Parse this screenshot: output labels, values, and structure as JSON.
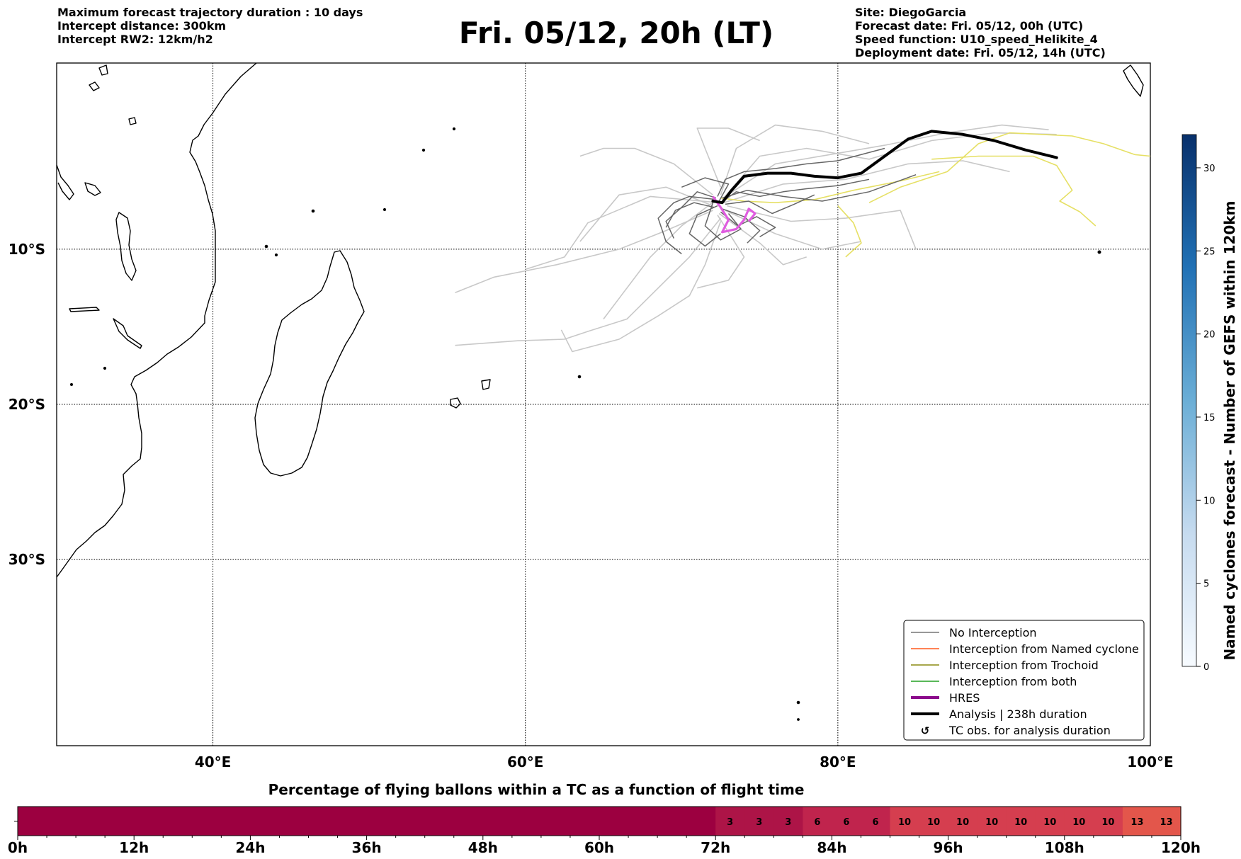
{
  "header": {
    "left_lines": [
      "Maximum forecast trajectory duration : 10 days",
      "Intercept distance: 300km",
      "Intercept RW2: 12km/h2"
    ],
    "title": "Fri. 05/12, 20h (LT)",
    "right_lines": [
      "Site: DiegoGarcia",
      "Forecast date: Fri. 05/12, 00h (UTC)",
      "Speed function: U10_speed_Helikite_4",
      "Deployment date: Fri. 05/12, 14h (UTC)"
    ]
  },
  "chart_data": [
    {
      "type": "map-trajectories",
      "lon_range": [
        30,
        100
      ],
      "lat_range": [
        -42,
        2
      ],
      "x_ticks": [
        "40°E",
        "60°E",
        "80°E",
        "100°E"
      ],
      "x_tick_values": [
        40,
        60,
        80,
        100
      ],
      "y_ticks": [
        "10°S",
        "20°S",
        "30°S"
      ],
      "y_tick_values": [
        -10,
        -20,
        -30
      ],
      "grid": true,
      "legend_position": "lower-right",
      "legend": [
        {
          "label": "No Interception",
          "color": "#777777",
          "style": "thin"
        },
        {
          "label": "Interception from Named cyclone",
          "color": "#ff5a1f",
          "style": "thin"
        },
        {
          "label": "Interception from Trochoid",
          "color": "#8a8a10",
          "style": "thin"
        },
        {
          "label": "Interception from both",
          "color": "#22a022",
          "style": "thin"
        },
        {
          "label": "HRES",
          "color": "#8b0a8b",
          "style": "thick"
        },
        {
          "label": "Analysis | 238h duration",
          "color": "#000000",
          "style": "thick"
        },
        {
          "label": "TC obs. for analysis duration",
          "color": "#000000",
          "style": "marker",
          "symbol": "↺"
        }
      ],
      "analysis_track": [
        [
          72.0,
          -6.9
        ],
        [
          72.6,
          -7.0
        ],
        [
          73.2,
          -6.2
        ],
        [
          74.0,
          -5.3
        ],
        [
          75.5,
          -5.1
        ],
        [
          77.0,
          -5.1
        ],
        [
          78.5,
          -5.3
        ],
        [
          80.0,
          -5.4
        ],
        [
          81.5,
          -5.1
        ],
        [
          83.0,
          -4.0
        ],
        [
          84.5,
          -2.9
        ],
        [
          86.0,
          -2.4
        ],
        [
          88.0,
          -2.6
        ],
        [
          90.0,
          -3.0
        ],
        [
          92.0,
          -3.6
        ],
        [
          94.0,
          -4.1
        ]
      ],
      "hres_track": [
        [
          72.0,
          -6.6
        ],
        [
          72.5,
          -7.3
        ],
        [
          73.0,
          -8.1
        ],
        [
          72.6,
          -8.9
        ],
        [
          73.5,
          -8.7
        ],
        [
          74.0,
          -8.1
        ],
        [
          74.3,
          -7.4
        ],
        [
          74.7,
          -7.7
        ],
        [
          74.3,
          -8.2
        ]
      ],
      "yellow_tracks": [
        [
          [
            72.5,
            -6.7
          ],
          [
            74.0,
            -6.9
          ],
          [
            76.0,
            -7.0
          ],
          [
            78.5,
            -6.8
          ],
          [
            81.0,
            -6.2
          ],
          [
            84.0,
            -5.6
          ],
          [
            86.5,
            -5.0
          ]
        ],
        [
          [
            80.0,
            -7.2
          ],
          [
            81.0,
            -8.3
          ],
          [
            81.5,
            -9.6
          ],
          [
            80.5,
            -10.5
          ]
        ],
        [
          [
            82.0,
            -7.0
          ],
          [
            84.0,
            -6.0
          ],
          [
            87.0,
            -5.0
          ],
          [
            89.0,
            -3.2
          ],
          [
            91.0,
            -2.5
          ],
          [
            93.0,
            -2.6
          ],
          [
            95.0,
            -2.7
          ],
          [
            97.0,
            -3.2
          ],
          [
            99.0,
            -3.9
          ],
          [
            100.0,
            -4.0
          ]
        ],
        [
          [
            86.0,
            -4.2
          ],
          [
            89.0,
            -4.0
          ],
          [
            92.5,
            -4.0
          ],
          [
            94.0,
            -4.6
          ],
          [
            95.0,
            -6.2
          ],
          [
            94.2,
            -6.9
          ],
          [
            95.5,
            -7.6
          ],
          [
            96.5,
            -8.5
          ]
        ]
      ],
      "dark_gray_tracks": [
        [
          [
            72.2,
            -6.7
          ],
          [
            71.0,
            -6.3
          ],
          [
            70.0,
            -7.3
          ],
          [
            69.0,
            -8.2
          ],
          [
            69.5,
            -9.3
          ]
        ],
        [
          [
            72.5,
            -7.0
          ],
          [
            73.5,
            -6.3
          ],
          [
            75.0,
            -6.6
          ],
          [
            76.5,
            -6.3
          ],
          [
            78.0,
            -6.1
          ],
          [
            80.0,
            -5.9
          ],
          [
            82.0,
            -5.5
          ]
        ],
        [
          [
            72.3,
            -7.2
          ],
          [
            71.0,
            -7.8
          ],
          [
            70.5,
            -9.0
          ],
          [
            71.5,
            -9.8
          ],
          [
            72.5,
            -9.0
          ]
        ],
        [
          [
            72.6,
            -7.4
          ],
          [
            74.0,
            -7.9
          ],
          [
            75.0,
            -8.8
          ],
          [
            74.2,
            -9.6
          ]
        ],
        [
          [
            72.4,
            -6.9
          ],
          [
            73.0,
            -5.8
          ],
          [
            71.5,
            -5.4
          ],
          [
            70.0,
            -6.0
          ]
        ],
        [
          [
            72.1,
            -7.3
          ],
          [
            70.8,
            -7.0
          ],
          [
            69.6,
            -7.5
          ],
          [
            69.0,
            -8.6
          ]
        ],
        [
          [
            72.8,
            -7.1
          ],
          [
            74.3,
            -6.9
          ],
          [
            75.8,
            -7.7
          ],
          [
            77.2,
            -7.1
          ],
          [
            78.5,
            -6.5
          ]
        ],
        [
          [
            72.3,
            -6.6
          ],
          [
            72.8,
            -5.5
          ],
          [
            74.0,
            -5.0
          ],
          [
            76.0,
            -4.8
          ],
          [
            78.0,
            -4.5
          ],
          [
            80.0,
            -4.3
          ],
          [
            83.0,
            -3.5
          ]
        ],
        [
          [
            72.0,
            -7.0
          ],
          [
            71.5,
            -8.5
          ],
          [
            72.5,
            -9.4
          ],
          [
            73.8,
            -8.7
          ],
          [
            73.0,
            -7.7
          ]
        ],
        [
          [
            72.5,
            -7.6
          ],
          [
            73.6,
            -8.5
          ],
          [
            74.8,
            -7.9
          ],
          [
            76.0,
            -8.6
          ],
          [
            75.0,
            -9.2
          ]
        ],
        [
          [
            72.2,
            -6.8
          ],
          [
            70.5,
            -6.6
          ],
          [
            69.5,
            -7.0
          ],
          [
            68.5,
            -8.0
          ],
          [
            69.0,
            -9.5
          ],
          [
            70.0,
            -10.3
          ]
        ],
        [
          [
            72.6,
            -6.7
          ],
          [
            74.2,
            -6.2
          ],
          [
            76.5,
            -6.6
          ],
          [
            79.0,
            -6.9
          ],
          [
            82.0,
            -6.3
          ],
          [
            85.0,
            -5.2
          ]
        ]
      ],
      "light_gray_tracks": [
        [
          [
            72.0,
            -7.5
          ],
          [
            69.0,
            -8.8
          ],
          [
            66.0,
            -10.0
          ],
          [
            62.0,
            -11.0
          ],
          [
            58.0,
            -11.8
          ],
          [
            55.5,
            -12.8
          ]
        ],
        [
          [
            72.5,
            -8.0
          ],
          [
            70.5,
            -10.5
          ],
          [
            68.5,
            -12.5
          ],
          [
            66.5,
            -14.5
          ],
          [
            64.0,
            -15.3
          ],
          [
            62.5,
            -15.8
          ],
          [
            59.5,
            -15.9
          ],
          [
            55.5,
            -16.2
          ]
        ],
        [
          [
            72.5,
            -8.2
          ],
          [
            71.5,
            -11.0
          ],
          [
            70.5,
            -13.0
          ],
          [
            68.5,
            -14.3
          ],
          [
            66.0,
            -15.8
          ],
          [
            63.0,
            -16.6
          ],
          [
            62.3,
            -15.2
          ]
        ],
        [
          [
            72.0,
            -6.5
          ],
          [
            69.5,
            -4.5
          ],
          [
            67.0,
            -3.5
          ],
          [
            65.0,
            -3.5
          ],
          [
            63.5,
            -4.0
          ]
        ],
        [
          [
            72.5,
            -6.0
          ],
          [
            71.5,
            -3.5
          ],
          [
            71.0,
            -2.2
          ],
          [
            73.0,
            -2.2
          ],
          [
            75.0,
            -3.0
          ]
        ],
        [
          [
            72.8,
            -7.5
          ],
          [
            76.0,
            -9.0
          ],
          [
            79.0,
            -10.0
          ],
          [
            81.5,
            -9.5
          ]
        ],
        [
          [
            72.4,
            -7.0
          ],
          [
            68.0,
            -6.6
          ],
          [
            64.0,
            -8.3
          ],
          [
            62.5,
            -10.5
          ],
          [
            60.0,
            -11.3
          ]
        ],
        [
          [
            72.6,
            -6.8
          ],
          [
            75.0,
            -4.0
          ],
          [
            78.0,
            -3.5
          ],
          [
            82.0,
            -4.2
          ],
          [
            86.0,
            -3.0
          ],
          [
            90.0,
            -2.5
          ],
          [
            94.0,
            -2.6
          ]
        ],
        [
          [
            72.3,
            -7.8
          ],
          [
            74.0,
            -10.5
          ],
          [
            73.0,
            -12.0
          ],
          [
            71.0,
            -12.5
          ]
        ],
        [
          [
            72.9,
            -7.2
          ],
          [
            77.0,
            -8.2
          ],
          [
            80.5,
            -8.0
          ],
          [
            84.0,
            -7.5
          ],
          [
            85.0,
            -10.0
          ]
        ],
        [
          [
            72.5,
            -6.5
          ],
          [
            73.5,
            -3.5
          ],
          [
            76.0,
            -2.0
          ],
          [
            79.0,
            -2.4
          ],
          [
            82.0,
            -3.2
          ]
        ],
        [
          [
            72.0,
            -7.2
          ],
          [
            69.0,
            -6.0
          ],
          [
            66.0,
            -6.5
          ],
          [
            63.5,
            -9.5
          ]
        ],
        [
          [
            72.7,
            -7.0
          ],
          [
            76.5,
            -5.8
          ],
          [
            80.5,
            -5.5
          ],
          [
            84.5,
            -4.5
          ],
          [
            88.0,
            -4.3
          ],
          [
            91.0,
            -5.0
          ]
        ],
        [
          [
            72.4,
            -7.7
          ],
          [
            75.0,
            -9.6
          ],
          [
            76.5,
            -11.0
          ],
          [
            78.0,
            -10.5
          ]
        ],
        [
          [
            72.1,
            -6.9
          ],
          [
            70.0,
            -8.5
          ],
          [
            68.0,
            -10.5
          ],
          [
            66.5,
            -12.5
          ],
          [
            65.0,
            -14.5
          ]
        ],
        [
          [
            72.8,
            -6.6
          ],
          [
            76.0,
            -4.5
          ],
          [
            79.5,
            -3.9
          ],
          [
            83.0,
            -3.3
          ],
          [
            87.0,
            -2.5
          ],
          [
            90.5,
            -2.0
          ],
          [
            93.5,
            -2.3
          ]
        ]
      ]
    },
    {
      "type": "heatmap",
      "title": "Percentage of flying ballons within a TC as a function of flight time",
      "x_range": [
        0,
        120
      ],
      "x_ticks": [
        "0h",
        "12h",
        "24h",
        "36h",
        "48h",
        "60h",
        "72h",
        "84h",
        "96h",
        "108h",
        "120h"
      ],
      "x_tick_values": [
        0,
        12,
        24,
        36,
        48,
        60,
        72,
        84,
        96,
        108,
        120
      ],
      "bin_hours": 3,
      "values": [
        0,
        0,
        0,
        0,
        0,
        0,
        0,
        0,
        0,
        0,
        0,
        0,
        0,
        0,
        0,
        0,
        0,
        0,
        0,
        0,
        0,
        0,
        0,
        0,
        3,
        3,
        3,
        6,
        6,
        6,
        10,
        10,
        10,
        10,
        10,
        10,
        10,
        10,
        13,
        13
      ],
      "labeled_from_bin": 24
    },
    {
      "type": "colorbar",
      "label": "Named cyclones forecast - Number of GEFS within 120km",
      "range": [
        0,
        32
      ],
      "ticks": [
        "0",
        "5",
        "10",
        "15",
        "20",
        "25",
        "30"
      ],
      "tick_values": [
        0,
        5,
        10,
        15,
        20,
        25,
        30
      ]
    }
  ]
}
